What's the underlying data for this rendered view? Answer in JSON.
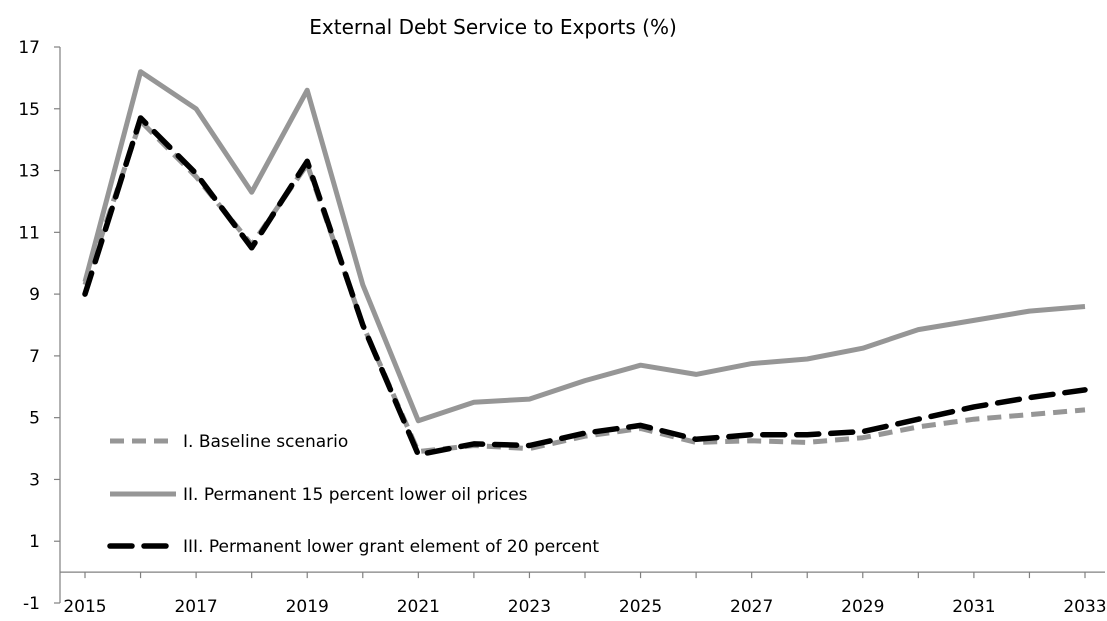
{
  "chart_data": {
    "type": "line",
    "title": "External Debt Service to Exports (%)",
    "xlabel": "",
    "ylabel": "",
    "x": [
      2015,
      2016,
      2017,
      2018,
      2019,
      2020,
      2021,
      2022,
      2023,
      2024,
      2025,
      2026,
      2027,
      2028,
      2029,
      2030,
      2031,
      2032,
      2033
    ],
    "x_tick_labels": [
      "2015",
      "2017",
      "2019",
      "2021",
      "2023",
      "2025",
      "2027",
      "2029",
      "2031",
      "2033"
    ],
    "y_tick_labels": [
      "-1",
      "1",
      "3",
      "5",
      "7",
      "9",
      "11",
      "13",
      "15",
      "17"
    ],
    "ylim": [
      -1,
      17
    ],
    "grid": false,
    "legend_position": "lower-left",
    "series": [
      {
        "name": "I. Baseline scenario",
        "color": "#969696",
        "style": "dashed",
        "values": [
          9.3,
          14.6,
          12.8,
          10.6,
          13.2,
          8.0,
          3.9,
          4.1,
          4.0,
          4.4,
          4.65,
          4.2,
          4.25,
          4.2,
          4.35,
          4.7,
          4.95,
          5.1,
          5.25
        ]
      },
      {
        "name": "II. Permanent 15 percent lower oil prices",
        "color": "#969696",
        "style": "solid",
        "values": [
          9.4,
          16.2,
          15.0,
          12.3,
          15.6,
          9.3,
          4.9,
          5.5,
          5.6,
          6.2,
          6.7,
          6.4,
          6.75,
          6.9,
          7.25,
          7.85,
          8.15,
          8.45,
          8.6
        ]
      },
      {
        "name": "III. Permanent lower grant element of 20 percent",
        "color": "#000000",
        "style": "dashed",
        "values": [
          9.0,
          14.7,
          12.9,
          10.5,
          13.3,
          8.0,
          3.8,
          4.15,
          4.1,
          4.5,
          4.75,
          4.3,
          4.45,
          4.45,
          4.55,
          4.95,
          5.35,
          5.65,
          5.9
        ]
      }
    ]
  }
}
